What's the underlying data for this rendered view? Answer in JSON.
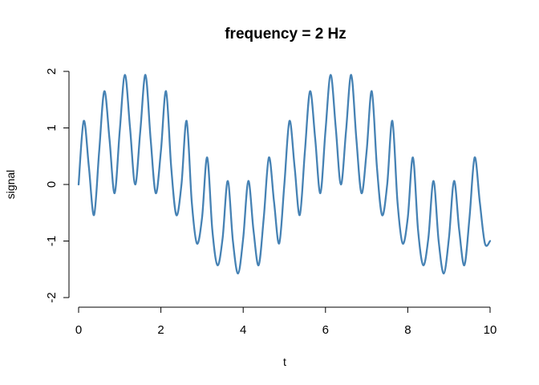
{
  "chart_data": {
    "type": "line",
    "title": "frequency =  2 Hz",
    "xlabel": "t",
    "ylabel": "signal",
    "xlim": [
      0,
      10
    ],
    "ylim": [
      -2,
      2
    ],
    "xticks": [
      0,
      2,
      4,
      6,
      8,
      10
    ],
    "xtick_labels": [
      "0",
      "2",
      "4",
      "6",
      "8",
      "10"
    ],
    "yticks": [
      -2,
      -1,
      0,
      1,
      2
    ],
    "ytick_labels": [
      "-2",
      "-1",
      "0",
      "1",
      "2"
    ],
    "grid": false,
    "series": [
      {
        "color": "#4682B4",
        "x": [
          0,
          0.125,
          0.25,
          0.375,
          0.5,
          0.625,
          0.75,
          0.875,
          1,
          1.125,
          1.25,
          1.375,
          1.5,
          1.625,
          1.75,
          1.875,
          2,
          2.125,
          2.25,
          2.375,
          2.5,
          2.625,
          2.75,
          2.875,
          3,
          3.125,
          3.25,
          3.375,
          3.5,
          3.625,
          3.75,
          3.875,
          4,
          4.125,
          4.25,
          4.375,
          4.5,
          4.625,
          4.75,
          4.875,
          5,
          5.125,
          5.25,
          5.375,
          5.5,
          5.625,
          5.75,
          5.875,
          6,
          6.125,
          6.25,
          6.375,
          6.5,
          6.625,
          6.75,
          6.875,
          7,
          7.125,
          7.25,
          7.375,
          7.5,
          7.625,
          7.75,
          7.875,
          8,
          8.125,
          8.25,
          8.375,
          8.5,
          8.625,
          8.75,
          8.875,
          9,
          9.125,
          9.25,
          9.375,
          9.5,
          9.625,
          9.75,
          9.875,
          10
        ],
        "y": [
          0.0,
          1.125,
          0.309,
          -0.541,
          0.588,
          1.649,
          0.809,
          -0.154,
          0.951,
          1.938,
          1.0,
          -0.0,
          0.951,
          1.938,
          0.809,
          -0.154,
          0.588,
          1.649,
          0.309,
          -0.541,
          0.0,
          1.125,
          -0.309,
          -1.043,
          -0.588,
          0.478,
          -0.809,
          -1.428,
          -0.951,
          0.062,
          -1.0,
          -1.574,
          -0.951,
          0.062,
          -0.809,
          -1.428,
          -0.588,
          0.478,
          -0.309,
          -1.043,
          0.0,
          1.125,
          0.309,
          -0.541,
          0.588,
          1.649,
          0.809,
          -0.154,
          0.951,
          1.938,
          1.0,
          0.0,
          0.951,
          1.938,
          0.809,
          -0.154,
          0.588,
          1.649,
          0.309,
          -0.541,
          0.0,
          1.125,
          -0.309,
          -1.043,
          -0.588,
          0.478,
          -0.809,
          -1.428,
          -0.951,
          0.062,
          -1.0,
          -1.574,
          -0.951,
          0.062,
          -0.809,
          -1.428,
          -0.588,
          0.478,
          -0.309,
          -1.043,
          -1.0
        ]
      }
    ]
  }
}
